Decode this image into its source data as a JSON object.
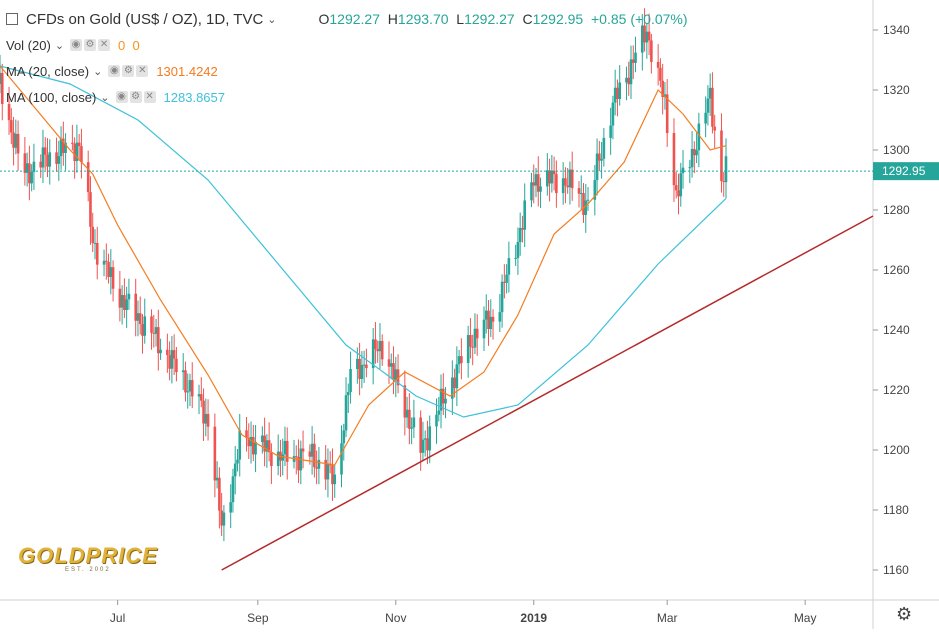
{
  "header": {
    "symbol_title": "CFDs on Gold (US$ / OZ), 1D, TVC",
    "open_label": "O",
    "open": "1292.27",
    "high_label": "H",
    "high": "1293.70",
    "low_label": "L",
    "low": "1292.27",
    "close_label": "C",
    "close": "1292.95",
    "change": "+0.85 (+0.07%)"
  },
  "indicators": [
    {
      "name": "Vol (20)",
      "values": [
        "0",
        "0"
      ],
      "color": "#f7931a"
    },
    {
      "name": "MA (20, close)",
      "value": "1301.4242",
      "color": "#f57c20"
    },
    {
      "name": "MA (100, close)",
      "value": "1283.8657",
      "color": "#3ec1d9"
    }
  ],
  "watermark": {
    "brand": "GOLDPRICE",
    "tagline": "EST. 2002"
  },
  "colors": {
    "up": "#26a69a",
    "down": "#ef5350",
    "ma20": "#f57c20",
    "ma100": "#3ec1d9",
    "trendline": "#b52a2a",
    "current_price_bg": "#26a69a"
  },
  "chart_data": {
    "type": "candlestick",
    "instrument": "CFDs on Gold (US$ / OZ)",
    "interval": "1D",
    "y_range": [
      1150,
      1350
    ],
    "y_ticks": [
      1160,
      1180,
      1200,
      1220,
      1240,
      1260,
      1280,
      1300,
      1320,
      1340
    ],
    "x_tick_labels": [
      "Jul",
      "Sep",
      "Nov",
      "2019",
      "Mar",
      "May"
    ],
    "x_tick_dates": [
      "2018-07-01",
      "2018-09-01",
      "2018-11-01",
      "2019-01-01",
      "2019-03-01",
      "2019-05-01"
    ],
    "x_range": [
      "2018-05-10",
      "2019-05-31"
    ],
    "last_date": "2019-03-27",
    "current_price": "1292.95",
    "close_series": [
      {
        "date": "2018-05-10",
        "close": 1322
      },
      {
        "date": "2018-05-20",
        "close": 1292
      },
      {
        "date": "2018-06-01",
        "close": 1298
      },
      {
        "date": "2018-06-14",
        "close": 1302
      },
      {
        "date": "2018-06-20",
        "close": 1270
      },
      {
        "date": "2018-07-01",
        "close": 1252
      },
      {
        "date": "2018-07-15",
        "close": 1240
      },
      {
        "date": "2018-08-01",
        "close": 1222
      },
      {
        "date": "2018-08-10",
        "close": 1210
      },
      {
        "date": "2018-08-16",
        "close": 1174
      },
      {
        "date": "2018-08-25",
        "close": 1205
      },
      {
        "date": "2018-09-10",
        "close": 1198
      },
      {
        "date": "2018-09-25",
        "close": 1198
      },
      {
        "date": "2018-10-05",
        "close": 1190
      },
      {
        "date": "2018-10-12",
        "close": 1225
      },
      {
        "date": "2018-10-26",
        "close": 1235
      },
      {
        "date": "2018-11-12",
        "close": 1200
      },
      {
        "date": "2018-11-25",
        "close": 1222
      },
      {
        "date": "2018-12-05",
        "close": 1238
      },
      {
        "date": "2018-12-15",
        "close": 1245
      },
      {
        "date": "2018-12-24",
        "close": 1268
      },
      {
        "date": "2019-01-01",
        "close": 1290
      },
      {
        "date": "2019-01-15",
        "close": 1290
      },
      {
        "date": "2019-01-25",
        "close": 1282
      },
      {
        "date": "2019-02-05",
        "close": 1315
      },
      {
        "date": "2019-02-20",
        "close": 1340
      },
      {
        "date": "2019-02-28",
        "close": 1315
      },
      {
        "date": "2019-03-05",
        "close": 1285
      },
      {
        "date": "2019-03-15",
        "close": 1305
      },
      {
        "date": "2019-03-20",
        "close": 1318
      },
      {
        "date": "2019-03-25",
        "close": 1290
      },
      {
        "date": "2019-03-27",
        "close": 1292.95
      }
    ],
    "ma20_series": [
      {
        "date": "2018-05-10",
        "value": 1328
      },
      {
        "date": "2018-06-10",
        "value": 1300
      },
      {
        "date": "2018-06-20",
        "value": 1292
      },
      {
        "date": "2018-07-01",
        "value": 1275
      },
      {
        "date": "2018-07-20",
        "value": 1250
      },
      {
        "date": "2018-08-10",
        "value": 1225
      },
      {
        "date": "2018-08-25",
        "value": 1205
      },
      {
        "date": "2018-09-10",
        "value": 1198
      },
      {
        "date": "2018-10-05",
        "value": 1195
      },
      {
        "date": "2018-10-20",
        "value": 1215
      },
      {
        "date": "2018-11-05",
        "value": 1226
      },
      {
        "date": "2018-11-25",
        "value": 1218
      },
      {
        "date": "2018-12-10",
        "value": 1226
      },
      {
        "date": "2018-12-25",
        "value": 1245
      },
      {
        "date": "2019-01-10",
        "value": 1272
      },
      {
        "date": "2019-01-25",
        "value": 1282
      },
      {
        "date": "2019-02-10",
        "value": 1296
      },
      {
        "date": "2019-02-25",
        "value": 1320
      },
      {
        "date": "2019-03-08",
        "value": 1312
      },
      {
        "date": "2019-03-20",
        "value": 1300
      },
      {
        "date": "2019-03-27",
        "value": 1301.4242
      }
    ],
    "ma100_series": [
      {
        "date": "2018-05-10",
        "value": 1328
      },
      {
        "date": "2018-06-10",
        "value": 1322
      },
      {
        "date": "2018-07-10",
        "value": 1310
      },
      {
        "date": "2018-08-10",
        "value": 1290
      },
      {
        "date": "2018-09-10",
        "value": 1262
      },
      {
        "date": "2018-10-10",
        "value": 1235
      },
      {
        "date": "2018-11-10",
        "value": 1218
      },
      {
        "date": "2018-12-01",
        "value": 1211
      },
      {
        "date": "2018-12-25",
        "value": 1215
      },
      {
        "date": "2019-01-25",
        "value": 1235
      },
      {
        "date": "2019-02-25",
        "value": 1262
      },
      {
        "date": "2019-03-27",
        "value": 1283.8657
      }
    ],
    "trendline": [
      {
        "date": "2018-08-16",
        "value": 1160
      },
      {
        "date": "2019-05-31",
        "value": 1278
      }
    ]
  }
}
